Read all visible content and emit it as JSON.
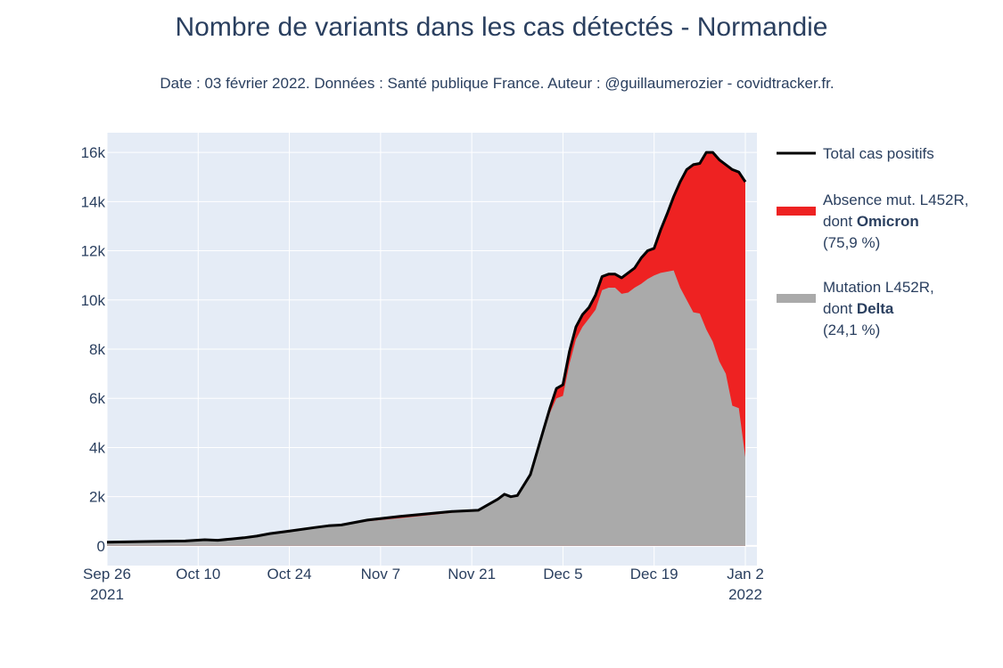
{
  "title": "Nombre de variants dans les cas détectés - Normandie",
  "subtitle": "Date : 03 février 2022. Données : Santé publique France. Auteur : @guillaumerozier - covidtracker.fr.",
  "colors": {
    "plot_bg": "#e5ecf6",
    "grid": "#ffffff",
    "total_line": "#000000",
    "omicron_fill": "#ee2222",
    "delta_fill": "#aaaaaa",
    "text": "#2a3f5f"
  },
  "legend": [
    {
      "key": "total",
      "lines": [
        [
          {
            "t": "Total cas positifs",
            "b": false
          }
        ]
      ]
    },
    {
      "key": "omicron",
      "lines": [
        [
          {
            "t": "Absence mut. L452R,",
            "b": false
          }
        ],
        [
          {
            "t": "dont ",
            "b": false
          },
          {
            "t": "Omicron",
            "b": true
          }
        ],
        [
          {
            "t": " (75,9 %)",
            "b": false
          }
        ]
      ]
    },
    {
      "key": "delta",
      "lines": [
        [
          {
            "t": "Mutation L452R,",
            "b": false
          }
        ],
        [
          {
            "t": "dont ",
            "b": false
          },
          {
            "t": "Delta",
            "b": true
          }
        ],
        [
          {
            "t": " (24,1 %)",
            "b": false
          }
        ]
      ]
    }
  ],
  "chart_data": {
    "type": "area",
    "x_range": [
      "2021-09-26",
      "2022-01-02"
    ],
    "ylim": [
      -800,
      16800
    ],
    "y_ticks": [
      0,
      2000,
      4000,
      6000,
      8000,
      10000,
      12000,
      14000,
      16000
    ],
    "y_tick_labels": [
      "0",
      "2k",
      "4k",
      "6k",
      "8k",
      "10k",
      "12k",
      "14k",
      "16k"
    ],
    "x_ticks": [
      {
        "date": "2021-09-26",
        "label": [
          "Sep 26",
          "2021"
        ]
      },
      {
        "date": "2021-10-10",
        "label": [
          "Oct 10"
        ]
      },
      {
        "date": "2021-10-24",
        "label": [
          "Oct 24"
        ]
      },
      {
        "date": "2021-11-07",
        "label": [
          "Nov 7"
        ]
      },
      {
        "date": "2021-11-21",
        "label": [
          "Nov 21"
        ]
      },
      {
        "date": "2021-12-05",
        "label": [
          "Dec 5"
        ]
      },
      {
        "date": "2021-12-19",
        "label": [
          "Dec 19"
        ]
      },
      {
        "date": "2022-01-02",
        "label": [
          "Jan 2",
          "2022"
        ]
      }
    ],
    "grid": true,
    "legend_position": "right",
    "x": [
      "2021-09-26",
      "2021-10-03",
      "2021-10-08",
      "2021-10-11",
      "2021-10-13",
      "2021-10-15",
      "2021-10-17",
      "2021-10-19",
      "2021-10-21",
      "2021-10-24",
      "2021-10-28",
      "2021-10-30",
      "2021-11-01",
      "2021-11-05",
      "2021-11-10",
      "2021-11-14",
      "2021-11-18",
      "2021-11-22",
      "2021-11-24",
      "2021-11-25",
      "2021-11-26",
      "2021-11-27",
      "2021-11-28",
      "2021-11-30",
      "2021-12-01",
      "2021-12-02",
      "2021-12-03",
      "2021-12-04",
      "2021-12-05",
      "2021-12-06",
      "2021-12-07",
      "2021-12-08",
      "2021-12-09",
      "2021-12-10",
      "2021-12-11",
      "2021-12-12",
      "2021-12-13",
      "2021-12-14",
      "2021-12-15",
      "2021-12-16",
      "2021-12-17",
      "2021-12-18",
      "2021-12-19",
      "2021-12-20",
      "2021-12-21",
      "2021-12-22",
      "2021-12-23",
      "2021-12-24",
      "2021-12-25",
      "2021-12-26",
      "2021-12-27",
      "2021-12-28",
      "2021-12-29",
      "2021-12-30",
      "2021-12-31",
      "2022-01-01",
      "2022-01-02"
    ],
    "series": [
      {
        "name": "Total cas positifs",
        "kind": "line",
        "values": [
          150,
          180,
          200,
          250,
          230,
          280,
          330,
          400,
          500,
          600,
          750,
          820,
          850,
          1050,
          1200,
          1300,
          1400,
          1450,
          1750,
          1900,
          2100,
          2000,
          2050,
          2900,
          3800,
          4700,
          5600,
          6400,
          6550,
          7900,
          8900,
          9400,
          9700,
          10200,
          10950,
          11050,
          11050,
          10900,
          11100,
          11300,
          11700,
          12000,
          12100,
          12850,
          13500,
          14200,
          14800,
          15300,
          15500,
          15550,
          16000,
          16000,
          15700,
          15500,
          15300,
          15200,
          14800
        ]
      },
      {
        "name": "Absence mut. L452R, dont Omicron",
        "kind": "area_top",
        "values": [
          150,
          180,
          200,
          250,
          230,
          280,
          330,
          400,
          500,
          600,
          750,
          820,
          850,
          1050,
          1200,
          1300,
          1400,
          1450,
          1750,
          1900,
          2100,
          2000,
          2050,
          2900,
          3800,
          4700,
          5600,
          6400,
          6550,
          7900,
          8900,
          9400,
          9700,
          10200,
          10950,
          11050,
          11050,
          10900,
          11100,
          11300,
          11700,
          12000,
          12100,
          12850,
          13500,
          14200,
          14800,
          15300,
          15500,
          15550,
          16000,
          16000,
          15700,
          15500,
          15300,
          15200,
          14800
        ]
      },
      {
        "name": "Mutation L452R, dont Delta",
        "kind": "area",
        "values": [
          150,
          180,
          200,
          250,
          230,
          280,
          330,
          400,
          500,
          600,
          730,
          800,
          820,
          1000,
          1130,
          1240,
          1350,
          1420,
          1700,
          1870,
          2070,
          1960,
          2000,
          2850,
          3700,
          4550,
          5400,
          6000,
          6100,
          7400,
          8400,
          8900,
          9250,
          9600,
          10400,
          10500,
          10500,
          10250,
          10300,
          10500,
          10650,
          10850,
          11000,
          11100,
          11150,
          11200,
          10500,
          10000,
          9500,
          9450,
          8800,
          8300,
          7500,
          7000,
          5700,
          5600,
          3600
        ]
      }
    ]
  }
}
